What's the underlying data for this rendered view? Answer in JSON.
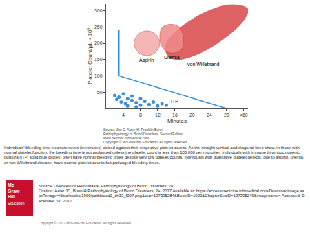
{
  "chart_data": {
    "type": "scatter",
    "x_label": "Minutes",
    "y_label": "Platelet Count/μL × 10³",
    "xlim": [
      0,
      33
    ],
    "xticks": [
      4,
      8,
      12,
      16,
      20,
      24,
      28,
      {
        "value": 32,
        "label": "<60"
      }
    ],
    "ylim": [
      0,
      320
    ],
    "yticks": [
      50,
      100,
      150,
      200,
      250,
      300
    ],
    "grid": false,
    "series": [
      {
        "name": "von Willebrand",
        "type": "area",
        "color": "#d9474a",
        "x": [
          14,
          16,
          21,
          27,
          32,
          33,
          29,
          23,
          17,
          14
        ],
        "y": [
          170,
          150,
          165,
          210,
          270,
          305,
          318,
          295,
          245,
          200
        ]
      },
      {
        "name": "Uremia",
        "type": "area",
        "color": "#f08a8a",
        "x": [
          12.5,
          13.5,
          15.5,
          17.5,
          18,
          17,
          15,
          13
        ],
        "y": [
          215,
          180,
          170,
          180,
          215,
          250,
          258,
          248
        ]
      },
      {
        "name": "Aspirin",
        "type": "area",
        "color": "#f4aaaa",
        "x": [
          6.5,
          7.5,
          9.5,
          11.5,
          12.5,
          11.5,
          9.5,
          7.5
        ],
        "y": [
          200,
          172,
          162,
          172,
          200,
          228,
          238,
          228
        ]
      },
      {
        "type": "line",
        "color": "#2f8fd6",
        "line_style": "solid",
        "x": [
          3,
          3,
          28
        ],
        "y": [
          240,
          100,
          0
        ]
      },
      {
        "name": "ITP",
        "type": "scatter",
        "marker": "circle",
        "color": "#3a8fd8",
        "x": [
          2,
          3,
          2.5,
          4,
          3.5,
          5,
          4.5,
          6,
          6,
          7,
          8,
          8,
          9,
          10,
          11,
          12,
          13,
          14,
          5,
          7
        ],
        "y": [
          40,
          35,
          28,
          45,
          20,
          30,
          15,
          25,
          38,
          18,
          30,
          10,
          22,
          12,
          20,
          8,
          15,
          10,
          8,
          5
        ]
      }
    ]
  },
  "figure_source": [
    "Source: Jon C. Aster, H. Franklin Bunn:",
    "Pathophysiology of Blood Disorders, Second Edition",
    "www.hemonc.mhmedical.com",
    "Copyright © McGraw-Hill Education. All rights reserved."
  ],
  "caption": "Individuals' bleeding time measurements (in minutes) plotted against their respective platelet counts. As the straight vertical and diagonal lines show, in those with normal platelet function, the bleeding time is not prolonged unless the platelet count is less than 100,000 per microliter. Individuals with immune thrombocytopenic purpura (ITP; solid blue circles) often have normal bleeding times despite very low platelet counts. Individuals with qualitative platelet defects, due to aspirin, uremia, or von Willebrand disease, have normal platelet counts but prolonged bleeding times.",
  "logo": [
    "Mc",
    "Graw",
    "Hill",
    "Education"
  ],
  "source": "Source: Overview of Hemostasis, Pathophysiology of Blood Disorders, 2e",
  "citation": "Citation: Aster JC, Bunn H  Pathophysiology of Blood Disorders, 2e; 2017 Available at: https://accessmedicine.mhmedical.com/Downloadimage.aspx?image=/data/books/1900/pathblood2_ch13_f007.png&sec=137395284&BookID=1900&ChapterSecID=137395249&imagename= Accessed: December 03, 2017",
  "copyright": "Copyright © 2017 McGraw-Hill Education. All rights reserved"
}
